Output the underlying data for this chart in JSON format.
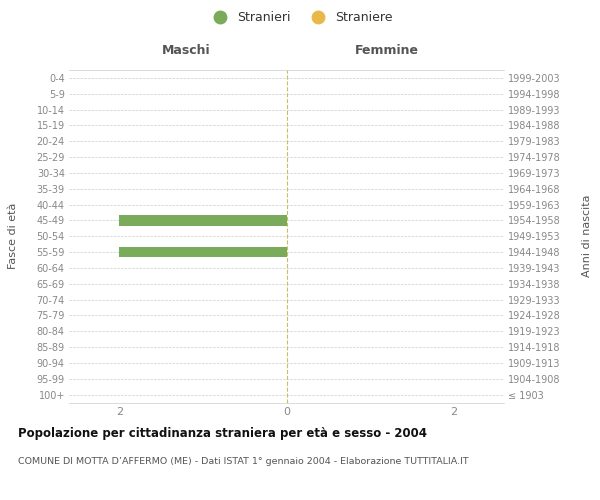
{
  "age_groups": [
    "0-4",
    "5-9",
    "10-14",
    "15-19",
    "20-24",
    "25-29",
    "30-34",
    "35-39",
    "40-44",
    "45-49",
    "50-54",
    "55-59",
    "60-64",
    "65-69",
    "70-74",
    "75-79",
    "80-84",
    "85-89",
    "90-94",
    "95-99",
    "100+"
  ],
  "birth_years": [
    "1999-2003",
    "1994-1998",
    "1989-1993",
    "1984-1988",
    "1979-1983",
    "1974-1978",
    "1969-1973",
    "1964-1968",
    "1959-1963",
    "1954-1958",
    "1949-1953",
    "1944-1948",
    "1939-1943",
    "1934-1938",
    "1929-1933",
    "1924-1928",
    "1919-1923",
    "1914-1918",
    "1909-1913",
    "1904-1908",
    "≤ 1903"
  ],
  "males_stranieri": [
    0,
    0,
    0,
    0,
    0,
    0,
    0,
    0,
    0,
    2,
    0,
    2,
    0,
    0,
    0,
    0,
    0,
    0,
    0,
    0,
    0
  ],
  "females_straniere": [
    0,
    0,
    0,
    0,
    0,
    0,
    0,
    0,
    0,
    0,
    0,
    0,
    0,
    0,
    0,
    0,
    0,
    0,
    0,
    0,
    0
  ],
  "xlim": 2.6,
  "color_stranieri": "#7aab5a",
  "color_straniere": "#e8b84b",
  "title": "Popolazione per cittadinanza straniera per età e sesso - 2004",
  "subtitle": "COMUNE DI MOTTA D’AFFERMO (ME) - Dati ISTAT 1° gennaio 2004 - Elaborazione TUTTITALIA.IT",
  "label_maschi": "Maschi",
  "label_femmine": "Femmine",
  "label_fasce": "Fasce di età",
  "label_anni": "Anni di nascita",
  "legend_stranieri": "Stranieri",
  "legend_straniere": "Straniere",
  "bg_color": "#ffffff",
  "grid_color": "#cccccc"
}
